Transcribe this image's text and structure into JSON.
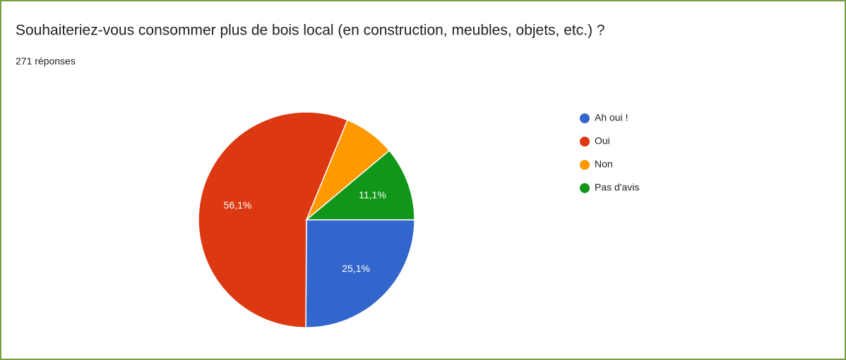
{
  "chart_data": {
    "type": "pie",
    "title": "Souhaiteriez-vous consommer plus de bois local (en construction, meubles, objets, etc.) ?",
    "subtitle": "271 réponses",
    "categories": [
      "Ah oui !",
      "Oui",
      "Non",
      "Pas d'avis"
    ],
    "values": [
      25.1,
      56.1,
      7.7,
      11.1
    ],
    "value_labels": [
      "25,1%",
      "56,1%",
      null,
      "11,1%"
    ],
    "colors": [
      "#3366cc",
      "#dc3912",
      "#ff9900",
      "#109618"
    ],
    "legend": "right"
  }
}
